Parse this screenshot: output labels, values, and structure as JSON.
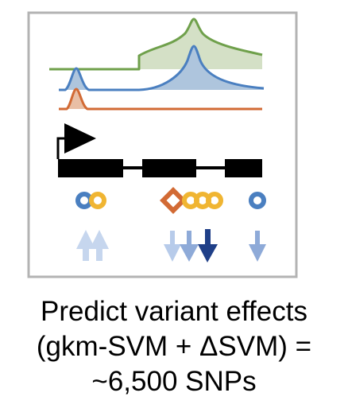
{
  "caption": {
    "line1": "Predict variant effects",
    "line2": "(gkm-SVM + ΔSVM) =",
    "line3": "~6,500 SNPs"
  },
  "colors": {
    "frame": "#b3b3b3",
    "green": "#6fa04b",
    "green_fill": "#d4e0c6",
    "blue": "#4a7fc0",
    "blue_fill": "#aec5dd",
    "orange": "#d26a34",
    "orange_fill": "#e9bfa5",
    "yellow": "#f0b532",
    "gene": "#000000",
    "arrow_light": "#c6d6ee",
    "arrow_mid": "#8eaad8",
    "arrow_dark": "#1f3f88"
  },
  "icons": {
    "promoter": "promoter-arrow-icon",
    "gene_model": "gene-exon-intron-icon",
    "snp": "snp-circle-icon",
    "effect_up": "up-arrow-icon",
    "effect_down": "down-arrow-icon"
  }
}
